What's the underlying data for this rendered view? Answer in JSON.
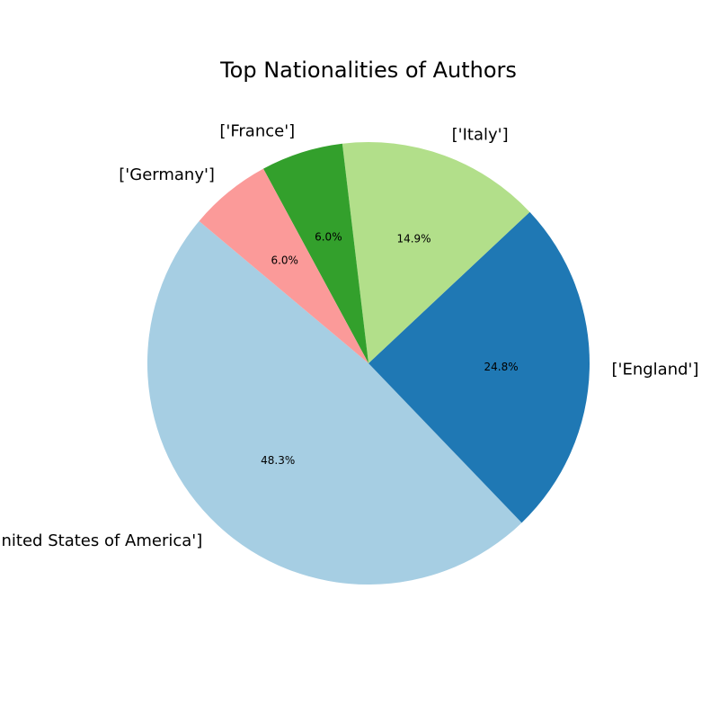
{
  "chart_data": {
    "type": "pie",
    "title": "Top Nationalities of Authors",
    "start_angle_deg": 140,
    "direction": "counterclockwise",
    "slices": [
      {
        "label": "['United States of America']",
        "value": 48.3,
        "pct_text": "48.3%",
        "color": "#a6cee3"
      },
      {
        "label": "['England']",
        "value": 24.8,
        "pct_text": "24.8%",
        "color": "#1f78b4"
      },
      {
        "label": "['Italy']",
        "value": 14.9,
        "pct_text": "14.9%",
        "color": "#b2df8a"
      },
      {
        "label": "['France']",
        "value": 6.0,
        "pct_text": "6.0%",
        "color": "#33a02c"
      },
      {
        "label": "['Germany']",
        "value": 6.0,
        "pct_text": "6.0%",
        "color": "#fb9a99"
      }
    ]
  }
}
